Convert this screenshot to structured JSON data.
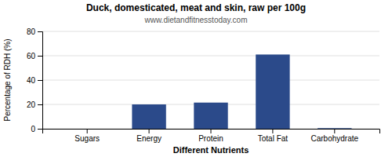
{
  "chart_data": {
    "type": "bar",
    "title": "Duck, domesticated, meat and skin, raw per 100g",
    "subtitle": "www.dietandfitnesstoday.com",
    "xlabel": "Different Nutrients",
    "ylabel": "Percentage of RDH (%)",
    "categories": [
      "Sugars",
      "Energy",
      "Protein",
      "Total Fat",
      "Carbohydrate"
    ],
    "values": [
      0,
      20,
      21.5,
      61,
      0.5
    ],
    "color": "#2b4a8a",
    "ylim": [
      0,
      80
    ],
    "yticks": [
      0,
      20,
      40,
      60,
      80
    ],
    "grid": true
  }
}
